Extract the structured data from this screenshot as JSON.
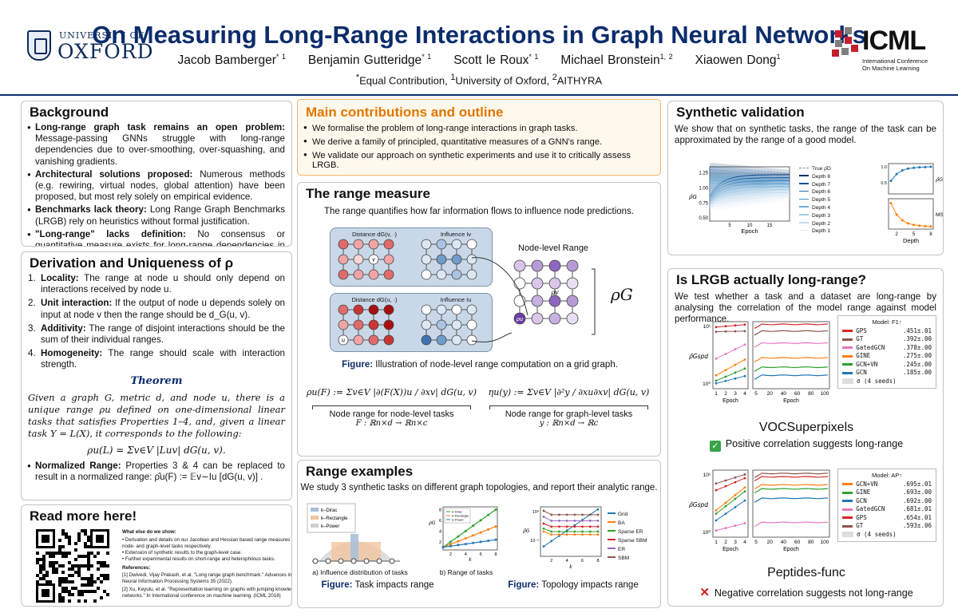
{
  "header": {
    "oxford_top": "UNIVERSITY OF",
    "oxford_main": "OXFORD",
    "title": "On Measuring Long-Range Interactions in Graph Neural Networks",
    "authors": [
      {
        "name": "Jacob Bamberger",
        "sup": "* 1"
      },
      {
        "name": "Benjamin Gutteridge",
        "sup": "* 1"
      },
      {
        "name": "Scott le Roux",
        "sup": "* 1"
      },
      {
        "name": "Michael Bronstein",
        "sup": "1, 2"
      },
      {
        "name": "Xiaowen Dong",
        "sup": "1"
      }
    ],
    "affiliations": "*Equal Contribution, 1University of Oxford, 2AITHYRA",
    "icml_name": "ICML",
    "icml_sub1": "International Conference",
    "icml_sub2": "On Machine Learning"
  },
  "background": {
    "title": "Background",
    "items": [
      {
        "bold": "Long-range graph task remains an open problem:",
        "text": " Message-passing GNNs struggle with long-range dependencies due to over-smoothing, over-squashing, and vanishing gradients."
      },
      {
        "bold": "Architectural solutions proposed:",
        "text": " Numerous methods (e.g. rewiring, virtual nodes, global attention) have been proposed, but most rely solely on empirical evidence."
      },
      {
        "bold": "Benchmarks lack theory:",
        "text": " Long Range Graph Benchmarks (LRGB) rely on heuristics without formal justification."
      },
      {
        "bold": "\"Long-range\" lacks definition:",
        "text": " No consensus or quantitative measure exists for long-range dependencies in graphs."
      }
    ]
  },
  "derivation": {
    "title": "Derivation and Uniqueness of ρ",
    "items": [
      {
        "n": "1.",
        "bold": "Locality:",
        "text": " The range at node u should only depend on interactions received by node u."
      },
      {
        "n": "2.",
        "bold": "Unit interaction:",
        "text": " If the output of node u depends solely on input at node v then the range should be d_G(u, v)."
      },
      {
        "n": "3.",
        "bold": "Additivity:",
        "text": " The range of disjoint interactions should be the sum of their individual ranges."
      },
      {
        "n": "4.",
        "bold": "Homogeneity:",
        "text": " The range should scale with interaction strength."
      }
    ],
    "theorem_title": "Theorem",
    "theorem_text": "Given a graph G, metric d, and node u, there is a unique range ρu defined on one-dimensional linear tasks that satisfies Properties 1–4, and, given a linear task Y = L(X), it corresponds to the following:",
    "theorem_eq": "ρu(L) = Σv∈V |Luv| dG(u, v).",
    "normalized_bold": "Normalized Range:",
    "normalized_text": " Properties 3 & 4 can be replaced to result in a normalized range: ρ̂u(F) := 𝔼v∼Iu [dG(u, v)] ."
  },
  "readmore": {
    "title": "Read more here!",
    "heading": "What else do we show:",
    "bullets": [
      "Derivation and details on our Jacobian and Hessian based range measures for node- and graph-level tasks respectively.",
      "Extension of synthetic results to the graph-level case.",
      "Further experimental results on short-range and heterophilous tasks."
    ],
    "refs_heading": "References:",
    "refs": [
      "[1] Dwivedi, Vijay Prakash, et al. \"Long range graph benchmark.\" Advances in Neural Information Processing Systems 35 (2022).",
      "[2] Xu, Keyulu, et al. \"Representation learning on graphs with jumping knowledge networks.\" In International conference on machine learning. (ICML 2018)"
    ]
  },
  "contributions": {
    "title": "Main contributions and outline",
    "items": [
      "We formalise the problem of long-range interactions in graph tasks.",
      "We derive a family of principled, quantitative measures of a GNN's range.",
      "We validate our approach on synthetic experiments and use it to critically assess LRGB."
    ]
  },
  "range_measure": {
    "title": "The range measure",
    "intro": "The range quantifies how far information flows to influence node predictions.",
    "label_distance": "Distance dG(v, ·)",
    "label_influence": "Influence Iv",
    "label_distance2": "Distance dG(u, ·)",
    "label_influence2": "Influence Iu",
    "node_level_range": "Node-level Range",
    "rho_g": "ρG",
    "rho_v": "ρv",
    "rho_u": "ρu",
    "node_v": "v",
    "node_u": "u",
    "fig_bold": "Figure:",
    "fig_text": " Illustration of node-level range computation on a grid graph.",
    "eq1": "ρu(F) := Σv∈V |∂(F(X))u / ∂xv| dG(u, v)",
    "eq1_label": "Node range for node-level tasks",
    "eq1_dom": "F : ℝn×d → ℝn×c",
    "eq2": "ηu(y) := Σv∈V |∂²y / ∂xu∂xv| dG(u, v)",
    "eq2_label": "Node range for graph-level tasks",
    "eq2_dom": "y : ℝn×d → ℝc"
  },
  "range_examples": {
    "title": "Range examples",
    "intro": "We study 3 synthetic tasks on different graph topologies, and report their analytic range.",
    "legend_a": [
      "k–Dirac",
      "k–Rectangle",
      "k–Power"
    ],
    "cap_a": "a) Influence distribution of tasks",
    "cap_b": "b) Range of tasks",
    "xlabel_b": "k",
    "ylabel_b": "ρG",
    "xticks_b": [
      "2",
      "4",
      "6",
      "8"
    ],
    "yticks_b": [
      "2",
      "4",
      "6",
      "8"
    ],
    "legend_c": [
      "Grid",
      "BA",
      "Sparse ER",
      "Sparse SBM",
      "ER",
      "SBM"
    ],
    "xlabel_c": "k",
    "ylabel_c": "ρ̂G",
    "xticks_c": [
      "2",
      "4",
      "6",
      "8"
    ],
    "yticks_c": [
      "10⁰",
      "10⁻¹"
    ],
    "fig1_bold": "Figure:",
    "fig1_text": " Task impacts range",
    "fig2_bold": "Figure:",
    "fig2_text": " Topology impacts range"
  },
  "synthetic": {
    "title": "Synthetic validation",
    "intro": "We show that on synthetic tasks, the range of the task can be approximated by the range of a good model.",
    "legend": [
      "True ρ̂G",
      "Depth 8",
      "Depth 7",
      "Depth 6",
      "Depth 5",
      "Depth 4",
      "Depth 3",
      "Depth 2",
      "Depth 1"
    ],
    "yticks_left": [
      "1.25",
      "1.00",
      "0.75",
      "0.50"
    ],
    "xticks_left": [
      "5",
      "10",
      "15"
    ],
    "xlabel_left": "Epoch",
    "ylabel_left": "ρ̂G",
    "ylabel_top": "ρ̂G",
    "ylabel_bottom": "MSE",
    "yticks_top": [
      "1.0",
      "0.5"
    ],
    "xticks_right": [
      "2",
      "5",
      "8"
    ],
    "xlabel_right": "Depth"
  },
  "lrgb": {
    "title": "Is LRGB actually long-range?",
    "intro": "We test whether a task and a dataset are long-range by analysing the correlation of the model range against model performance.",
    "voc": {
      "legend_title": "Model: F1↑",
      "models": [
        {
          "name": "GPS",
          "score": ".451±.01",
          "color": "#d62728"
        },
        {
          "name": "GT",
          "score": ".392±.00",
          "color": "#8c564b"
        },
        {
          "name": "GatedGCN",
          "score": ".378±.00",
          "color": "#e377c2"
        },
        {
          "name": "GINE",
          "score": ".275±.00",
          "color": "#ff7f0e"
        },
        {
          "name": "GCN+VN",
          "score": ".245±.00",
          "color": "#2ca02c"
        },
        {
          "name": "GCN",
          "score": ".185±.00",
          "color": "#1f77b4"
        }
      ],
      "seeds": "σ (4 seeds)",
      "yticks": [
        "10¹",
        "10⁰"
      ],
      "xticks1": [
        "1",
        "2",
        "3",
        "4"
      ],
      "xticks2": [
        "5",
        "20",
        "40",
        "60",
        "80",
        "100"
      ],
      "xlabel": "Epoch",
      "ylabel": "ρ̂Gspd",
      "dataset": "VOCSuperpixels",
      "verdict": "Positive correlation suggests long-range",
      "verdict_icon": "✓"
    },
    "pep": {
      "legend_title": "Model: AP↑",
      "models": [
        {
          "name": "GCN+VN",
          "score": ".695±.01",
          "color": "#ff7f0e"
        },
        {
          "name": "GINE",
          "score": ".693±.00",
          "color": "#2ca02c"
        },
        {
          "name": "GCN",
          "score": ".692±.00",
          "color": "#1f77b4"
        },
        {
          "name": "GatedGCN",
          "score": ".681±.01",
          "color": "#e377c2"
        },
        {
          "name": "GPS",
          "score": ".654±.01",
          "color": "#d62728"
        },
        {
          "name": "GT",
          "score": ".593±.06",
          "color": "#8c564b"
        }
      ],
      "seeds": "σ (4 seeds)",
      "yticks": [
        "10¹",
        "10⁰"
      ],
      "xticks1": [
        "1",
        "2",
        "3",
        "4"
      ],
      "xticks2": [
        "5",
        "20",
        "40",
        "60",
        "80",
        "100"
      ],
      "xlabel": "Epoch",
      "ylabel": "ρ̂Gspd",
      "dataset": "Peptides-func",
      "verdict": "Negative correlation suggests not long-range",
      "verdict_icon": "✕"
    }
  },
  "colors": {
    "navy": "#0c2c6b",
    "orange": "#e07800",
    "check_green": "#3aa34a",
    "cross_red": "#d21f1f"
  }
}
